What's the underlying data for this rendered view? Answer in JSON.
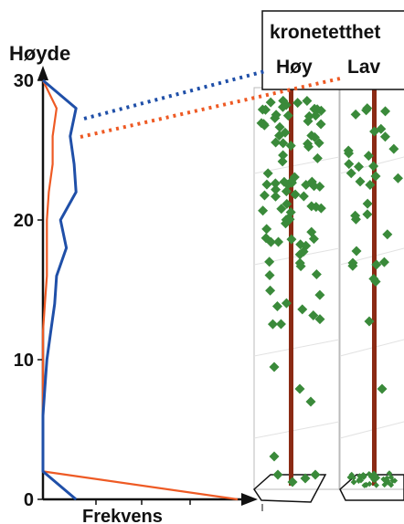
{
  "chart_data": {
    "type": "line",
    "ylabel": "Høyde",
    "xlabel": "Frekvens",
    "ylim": [
      0,
      30
    ],
    "yticks": [
      0,
      10,
      20,
      30
    ],
    "grid": false,
    "legend": {
      "title": "kronetetthet",
      "placement": "top-right"
    },
    "series": [
      {
        "name": "Høy",
        "color": "#1f4fa8",
        "points": [
          {
            "height": 30,
            "frequency": 0.0
          },
          {
            "height": 28,
            "frequency": 0.17
          },
          {
            "height": 26,
            "frequency": 0.14
          },
          {
            "height": 24,
            "frequency": 0.16
          },
          {
            "height": 22,
            "frequency": 0.17
          },
          {
            "height": 20,
            "frequency": 0.09
          },
          {
            "height": 18,
            "frequency": 0.12
          },
          {
            "height": 16,
            "frequency": 0.07
          },
          {
            "height": 14,
            "frequency": 0.06
          },
          {
            "height": 12,
            "frequency": 0.04
          },
          {
            "height": 10,
            "frequency": 0.02
          },
          {
            "height": 8,
            "frequency": 0.01
          },
          {
            "height": 6,
            "frequency": 0.0
          },
          {
            "height": 4,
            "frequency": 0.0
          },
          {
            "height": 2,
            "frequency": 0.0
          },
          {
            "height": 0,
            "frequency": 0.17
          }
        ]
      },
      {
        "name": "Lav",
        "color": "#ee5a24",
        "points": [
          {
            "height": 30,
            "frequency": 0.0
          },
          {
            "height": 28,
            "frequency": 0.07
          },
          {
            "height": 26,
            "frequency": 0.05
          },
          {
            "height": 24,
            "frequency": 0.05
          },
          {
            "height": 22,
            "frequency": 0.03
          },
          {
            "height": 20,
            "frequency": 0.02
          },
          {
            "height": 18,
            "frequency": 0.02
          },
          {
            "height": 16,
            "frequency": 0.02
          },
          {
            "height": 14,
            "frequency": 0.01
          },
          {
            "height": 12,
            "frequency": 0.0
          },
          {
            "height": 10,
            "frequency": 0.0
          },
          {
            "height": 8,
            "frequency": 0.0
          },
          {
            "height": 6,
            "frequency": 0.0
          },
          {
            "height": 4,
            "frequency": 0.0
          },
          {
            "height": 2,
            "frequency": 0.0
          },
          {
            "height": 0,
            "frequency": 1.0
          }
        ]
      }
    ]
  },
  "crowns": {
    "leaf_color": "#3a8a3a",
    "trunk_color": "#8b2a14",
    "high_density_leaves": 90,
    "low_density_leaves": 30
  }
}
